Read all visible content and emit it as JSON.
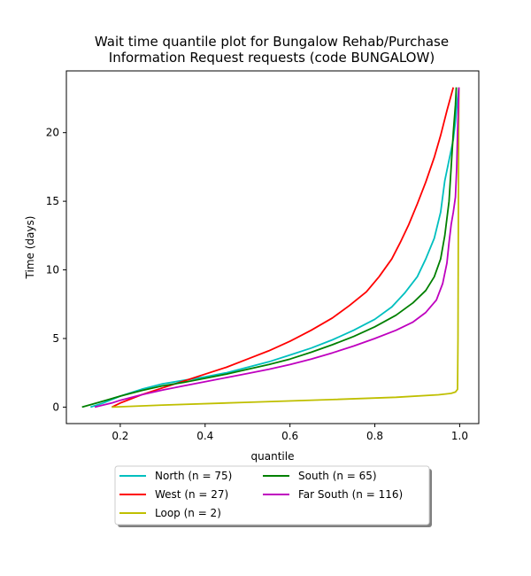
{
  "chart_data": {
    "type": "line",
    "title_lines": [
      "Wait time quantile plot for Bungalow Rehab/Purchase",
      "Information Request  requests (code BUNGALOW)"
    ],
    "xlabel": "quantile",
    "ylabel": "Time (days)",
    "xlim": [
      0.073,
      1.045
    ],
    "ylim": [
      -1.2,
      24.5
    ],
    "xticks": [
      0.2,
      0.4,
      0.6,
      0.8,
      1.0
    ],
    "xtick_labels": [
      "0.2",
      "0.4",
      "0.6",
      "0.8",
      "1.0"
    ],
    "yticks": [
      0,
      5,
      10,
      15,
      20
    ],
    "ytick_labels": [
      "0",
      "5",
      "10",
      "15",
      "20"
    ],
    "grid": false,
    "legend_position": "below-center",
    "legend_columns": 2,
    "series": [
      {
        "name": "North (n = 75)",
        "color": "#00bfbf",
        "points": [
          [
            0.13,
            0
          ],
          [
            0.16,
            0.3
          ],
          [
            0.2,
            0.8
          ],
          [
            0.25,
            1.3
          ],
          [
            0.3,
            1.7
          ],
          [
            0.35,
            1.95
          ],
          [
            0.4,
            2.2
          ],
          [
            0.45,
            2.5
          ],
          [
            0.5,
            2.9
          ],
          [
            0.55,
            3.3
          ],
          [
            0.6,
            3.8
          ],
          [
            0.65,
            4.3
          ],
          [
            0.7,
            4.9
          ],
          [
            0.75,
            5.6
          ],
          [
            0.8,
            6.4
          ],
          [
            0.84,
            7.3
          ],
          [
            0.87,
            8.3
          ],
          [
            0.9,
            9.5
          ],
          [
            0.92,
            10.8
          ],
          [
            0.94,
            12.3
          ],
          [
            0.955,
            14.2
          ],
          [
            0.965,
            16.5
          ],
          [
            0.975,
            18
          ],
          [
            0.985,
            19.5
          ],
          [
            0.99,
            20.8
          ],
          [
            0.995,
            22.5
          ],
          [
            0.998,
            23.3
          ]
        ]
      },
      {
        "name": "West (n = 27)",
        "color": "#ff0000",
        "points": [
          [
            0.18,
            0
          ],
          [
            0.2,
            0.3
          ],
          [
            0.25,
            0.9
          ],
          [
            0.3,
            1.4
          ],
          [
            0.35,
            1.9
          ],
          [
            0.4,
            2.4
          ],
          [
            0.45,
            2.9
          ],
          [
            0.5,
            3.5
          ],
          [
            0.55,
            4.1
          ],
          [
            0.6,
            4.8
          ],
          [
            0.65,
            5.6
          ],
          [
            0.7,
            6.5
          ],
          [
            0.74,
            7.4
          ],
          [
            0.78,
            8.4
          ],
          [
            0.81,
            9.5
          ],
          [
            0.84,
            10.8
          ],
          [
            0.86,
            12
          ],
          [
            0.88,
            13.3
          ],
          [
            0.9,
            14.8
          ],
          [
            0.92,
            16.4
          ],
          [
            0.94,
            18.2
          ],
          [
            0.955,
            19.8
          ],
          [
            0.97,
            21.6
          ],
          [
            0.985,
            23.3
          ]
        ]
      },
      {
        "name": "Loop (n = 2)",
        "color": "#bfbf00",
        "points": [
          [
            0.18,
            0
          ],
          [
            0.3,
            0.15
          ],
          [
            0.5,
            0.35
          ],
          [
            0.7,
            0.55
          ],
          [
            0.85,
            0.72
          ],
          [
            0.95,
            0.9
          ],
          [
            0.98,
            1.0
          ],
          [
            0.99,
            1.1
          ],
          [
            0.995,
            1.3
          ],
          [
            0.996,
            5
          ],
          [
            0.997,
            15
          ],
          [
            0.998,
            23.3
          ]
        ]
      },
      {
        "name": "South (n = 65)",
        "color": "#008000",
        "points": [
          [
            0.11,
            0
          ],
          [
            0.15,
            0.35
          ],
          [
            0.2,
            0.8
          ],
          [
            0.25,
            1.2
          ],
          [
            0.3,
            1.55
          ],
          [
            0.35,
            1.8
          ],
          [
            0.4,
            2.1
          ],
          [
            0.45,
            2.4
          ],
          [
            0.5,
            2.75
          ],
          [
            0.55,
            3.1
          ],
          [
            0.6,
            3.5
          ],
          [
            0.65,
            4.0
          ],
          [
            0.7,
            4.55
          ],
          [
            0.75,
            5.15
          ],
          [
            0.8,
            5.85
          ],
          [
            0.85,
            6.7
          ],
          [
            0.89,
            7.6
          ],
          [
            0.92,
            8.5
          ],
          [
            0.94,
            9.5
          ],
          [
            0.955,
            10.8
          ],
          [
            0.965,
            12.5
          ],
          [
            0.975,
            15
          ],
          [
            0.98,
            17.5
          ],
          [
            0.985,
            20
          ],
          [
            0.99,
            22
          ],
          [
            0.992,
            23.3
          ]
        ]
      },
      {
        "name": "Far South (n = 116)",
        "color": "#bf00bf",
        "points": [
          [
            0.14,
            0
          ],
          [
            0.18,
            0.3
          ],
          [
            0.2,
            0.5
          ],
          [
            0.25,
            0.9
          ],
          [
            0.3,
            1.25
          ],
          [
            0.35,
            1.55
          ],
          [
            0.4,
            1.85
          ],
          [
            0.45,
            2.15
          ],
          [
            0.5,
            2.45
          ],
          [
            0.55,
            2.75
          ],
          [
            0.6,
            3.1
          ],
          [
            0.65,
            3.5
          ],
          [
            0.7,
            3.95
          ],
          [
            0.75,
            4.45
          ],
          [
            0.8,
            5.0
          ],
          [
            0.85,
            5.6
          ],
          [
            0.89,
            6.2
          ],
          [
            0.92,
            6.9
          ],
          [
            0.945,
            7.8
          ],
          [
            0.96,
            9
          ],
          [
            0.97,
            10.5
          ],
          [
            0.975,
            12
          ],
          [
            0.98,
            13.3
          ],
          [
            0.985,
            14.2
          ],
          [
            0.99,
            15.3
          ],
          [
            0.993,
            17.5
          ],
          [
            0.995,
            20
          ],
          [
            0.997,
            22
          ],
          [
            0.998,
            23.3
          ]
        ]
      }
    ]
  }
}
